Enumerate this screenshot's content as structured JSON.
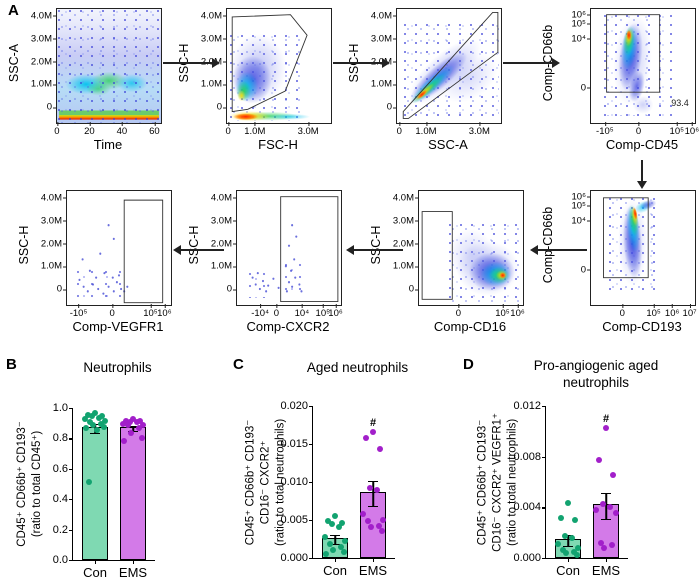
{
  "colors": {
    "con_bar": "#7fd9b2",
    "ems_bar": "#d37ae8",
    "con_dot": "#12a370",
    "ems_dot": "#a21fca",
    "axis": "#000000"
  },
  "panelA": {
    "label": "A",
    "plots": [
      {
        "name": "time",
        "ylabel": "SSC-A",
        "xlabel": "Time",
        "yticks": [
          {
            "label": "4.0M",
            "pos": 7
          },
          {
            "label": "3.0M",
            "pos": 27
          },
          {
            "label": "2.0M",
            "pos": 47
          },
          {
            "label": "1.0M",
            "pos": 67
          },
          {
            "label": "0",
            "pos": 87
          }
        ],
        "xticks": [
          {
            "label": "0",
            "pos": 6
          },
          {
            "label": "20",
            "pos": 34
          },
          {
            "label": "40",
            "pos": 62
          },
          {
            "label": "60",
            "pos": 90
          }
        ]
      },
      {
        "name": "fsch",
        "ylabel": "SSC-H",
        "xlabel": "FSC-H",
        "yticks": [
          {
            "label": "4.0M",
            "pos": 7
          },
          {
            "label": "3.0M",
            "pos": 27
          },
          {
            "label": "2.0M",
            "pos": 47
          },
          {
            "label": "1.0M",
            "pos": 67
          },
          {
            "label": "0",
            "pos": 87
          }
        ],
        "xticks": [
          {
            "label": "0",
            "pos": 7
          },
          {
            "label": "1.0M",
            "pos": 30
          },
          {
            "label": "3.0M",
            "pos": 76
          }
        ]
      },
      {
        "name": "ssca",
        "ylabel": "SSC-H",
        "xlabel": "SSC-A",
        "yticks": [
          {
            "label": "4.0M",
            "pos": 7
          },
          {
            "label": "3.0M",
            "pos": 27
          },
          {
            "label": "2.0M",
            "pos": 47
          },
          {
            "label": "1.0M",
            "pos": 67
          },
          {
            "label": "0",
            "pos": 87
          }
        ],
        "xticks": [
          {
            "label": "0",
            "pos": 8
          },
          {
            "label": "1.0M",
            "pos": 31
          },
          {
            "label": "3.0M",
            "pos": 77
          }
        ]
      },
      {
        "name": "cd45",
        "ylabel": "Comp-CD66b",
        "xlabel": "Comp-CD45",
        "gate_label": "93.4",
        "yticks": [
          {
            "label": "10⁶",
            "pos": 6
          },
          {
            "label": "10⁵",
            "pos": 14
          },
          {
            "label": "10⁴",
            "pos": 27
          },
          {
            "label": "0",
            "pos": 70
          }
        ],
        "xticks": [
          {
            "label": "-10⁵",
            "pos": 18
          },
          {
            "label": "0",
            "pos": 47
          },
          {
            "label": "10⁵",
            "pos": 80
          },
          {
            "label": "10⁶",
            "pos": 93
          }
        ]
      },
      {
        "name": "vegfr1",
        "ylabel": "SSC-H",
        "xlabel": "Comp-VEGFR1",
        "yticks": [
          {
            "label": "4.0M",
            "pos": 7
          },
          {
            "label": "3.0M",
            "pos": 27
          },
          {
            "label": "2.0M",
            "pos": 47
          },
          {
            "label": "1.0M",
            "pos": 67
          },
          {
            "label": "0",
            "pos": 87
          }
        ],
        "xticks": [
          {
            "label": "-10⁵",
            "pos": 16
          },
          {
            "label": "0",
            "pos": 45
          },
          {
            "label": "10⁵",
            "pos": 78
          },
          {
            "label": "10⁶",
            "pos": 90
          }
        ]
      },
      {
        "name": "cxcr2",
        "ylabel": "SSC-H",
        "xlabel": "Comp-CXCR2",
        "yticks": [
          {
            "label": "4.0M",
            "pos": 7
          },
          {
            "label": "3.0M",
            "pos": 27
          },
          {
            "label": "2.0M",
            "pos": 47
          },
          {
            "label": "1.0M",
            "pos": 67
          },
          {
            "label": "0",
            "pos": 87
          }
        ],
        "xticks": [
          {
            "label": "-10⁴",
            "pos": 26
          },
          {
            "label": "0",
            "pos": 40
          },
          {
            "label": "10⁴",
            "pos": 62
          },
          {
            "label": "10⁵",
            "pos": 80
          },
          {
            "label": "10⁶",
            "pos": 91
          }
        ]
      },
      {
        "name": "cd16",
        "ylabel": "SSC-H",
        "xlabel": "Comp-CD16",
        "yticks": [
          {
            "label": "4.0M",
            "pos": 7
          },
          {
            "label": "3.0M",
            "pos": 27
          },
          {
            "label": "2.0M",
            "pos": 47
          },
          {
            "label": "1.0M",
            "pos": 67
          },
          {
            "label": "0",
            "pos": 87
          }
        ],
        "xticks": [
          {
            "label": "0",
            "pos": 40
          },
          {
            "label": "10⁵",
            "pos": 78
          },
          {
            "label": "10⁶",
            "pos": 91
          }
        ]
      },
      {
        "name": "cd193",
        "ylabel": "Comp-CD66b",
        "xlabel": "Comp-CD193",
        "yticks": [
          {
            "label": "10⁶",
            "pos": 6
          },
          {
            "label": "10⁵",
            "pos": 14
          },
          {
            "label": "10⁴",
            "pos": 27
          },
          {
            "label": "0",
            "pos": 70
          }
        ],
        "xticks": [
          {
            "label": "0",
            "pos": 33
          },
          {
            "label": "10⁵",
            "pos": 60
          },
          {
            "label": "10⁶",
            "pos": 76
          },
          {
            "label": "10⁷",
            "pos": 91
          }
        ]
      }
    ]
  },
  "chart_data": [
    {
      "id": "B",
      "panel": "B",
      "type": "bar",
      "title": "Neutrophils",
      "ylabel": "CD45⁺ CD66b⁺ CD193⁻\n(ratio to total CD45⁺)",
      "ylim": [
        0,
        1.0
      ],
      "yticks": [
        {
          "label": "0.0",
          "v": 0
        },
        {
          "label": "0.2",
          "v": 0.2
        },
        {
          "label": "0.4",
          "v": 0.4
        },
        {
          "label": "0.6",
          "v": 0.6
        },
        {
          "label": "0.8",
          "v": 0.8
        },
        {
          "label": "1.0",
          "v": 1.0
        }
      ],
      "categories": [
        "Con",
        "EMS"
      ],
      "groups": [
        {
          "key": "con",
          "label": "Con",
          "mean": 0.87,
          "sem": 0.025,
          "sig": "",
          "points": [
            0.96,
            0.95,
            0.94,
            0.94,
            0.93,
            0.92,
            0.91,
            0.9,
            0.89,
            0.88,
            0.87,
            0.86,
            0.85,
            0.51
          ]
        },
        {
          "key": "ems",
          "label": "EMS",
          "mean": 0.87,
          "sem": 0.015,
          "sig": "",
          "points": [
            0.92,
            0.91,
            0.91,
            0.9,
            0.9,
            0.89,
            0.88,
            0.88,
            0.86,
            0.83,
            0.8,
            0.78
          ]
        }
      ]
    },
    {
      "id": "C",
      "panel": "C",
      "type": "bar",
      "title": "Aged neutrophils",
      "ylabel": "CD45⁺ CD66b⁺ CD193⁻\nCD16⁻ CXCR2⁺\n(ratio to total neutrophils)",
      "ylim": [
        0,
        0.02
      ],
      "yticks": [
        {
          "label": "0.000",
          "v": 0
        },
        {
          "label": "0.005",
          "v": 0.005
        },
        {
          "label": "0.010",
          "v": 0.01
        },
        {
          "label": "0.015",
          "v": 0.015
        },
        {
          "label": "0.020",
          "v": 0.02
        }
      ],
      "categories": [
        "Con",
        "EMS"
      ],
      "groups": [
        {
          "key": "con",
          "label": "Con",
          "mean": 0.0026,
          "sem": 0.0005,
          "sig": "",
          "points": [
            0.0055,
            0.0048,
            0.0046,
            0.0044,
            0.004,
            0.0028,
            0.0022,
            0.0018,
            0.0015,
            0.001,
            0.0008,
            0.0005
          ]
        },
        {
          "key": "ems",
          "label": "EMS",
          "mean": 0.0086,
          "sem": 0.0016,
          "sig": "#",
          "points": [
            0.0165,
            0.0157,
            0.0143,
            0.0091,
            0.0089,
            0.0058,
            0.005,
            0.0048,
            0.0042,
            0.004,
            0.0035
          ]
        }
      ]
    },
    {
      "id": "D",
      "panel": "D",
      "type": "bar",
      "title": "Pro-angiogenic aged neutrophils",
      "ylabel": "CD45⁺ CD66b⁺ CD193⁻\nCD16⁻ CXCR2⁺ VEGFR1⁺\n(ratio to total neutrophils)",
      "ylim": [
        0,
        0.012
      ],
      "yticks": [
        {
          "label": "0.000",
          "v": 0
        },
        {
          "label": "0.004",
          "v": 0.004
        },
        {
          "label": "0.008",
          "v": 0.008
        },
        {
          "label": "0.012",
          "v": 0.012
        }
      ],
      "categories": [
        "Con",
        "EMS"
      ],
      "groups": [
        {
          "key": "con",
          "label": "Con",
          "mean": 0.0015,
          "sem": 0.0004,
          "sig": "",
          "points": [
            0.0043,
            0.0031,
            0.003,
            0.0017,
            0.0016,
            0.0011,
            0.0008,
            0.0006,
            0.0005,
            0.0004,
            0.0002
          ]
        },
        {
          "key": "ems",
          "label": "EMS",
          "mean": 0.0042,
          "sem": 0.001,
          "sig": "#",
          "points": [
            0.0102,
            0.0077,
            0.0065,
            0.0042,
            0.004,
            0.0038,
            0.0035,
            0.0012,
            0.001,
            0.0008
          ]
        }
      ]
    }
  ]
}
